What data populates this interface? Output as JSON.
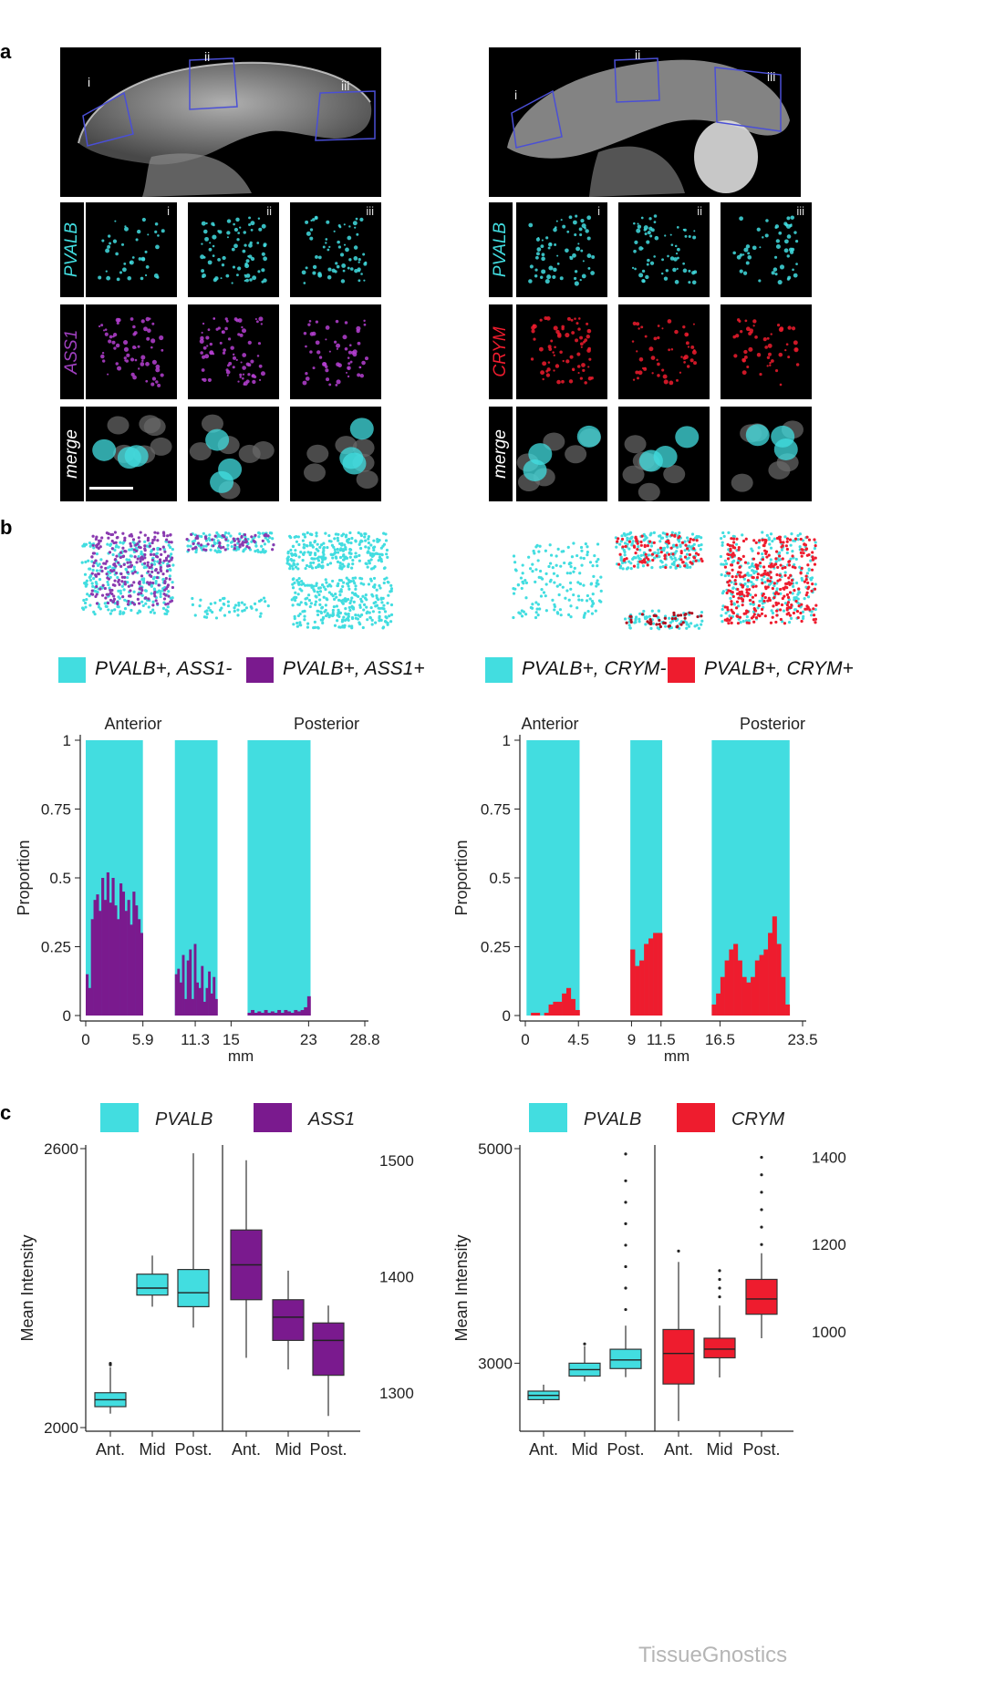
{
  "colors": {
    "cyan": "#42dde0",
    "purple": "#7a1a8e",
    "red": "#ee1c2e",
    "black": "#000000"
  },
  "panels": {
    "a": "a",
    "b": "b",
    "c": "c"
  },
  "panel_a": {
    "left": {
      "regions": [
        "i",
        "ii",
        "iii"
      ],
      "rows": [
        "PVALB",
        "ASS1",
        "merge"
      ],
      "tile_labels": [
        "i",
        "ii",
        "iii"
      ]
    },
    "right": {
      "regions": [
        "i",
        "ii",
        "iii"
      ],
      "rows": [
        "PVALB",
        "CRYM",
        "merge"
      ],
      "tile_labels": [
        "i",
        "ii",
        "iii"
      ]
    }
  },
  "panel_b": {
    "left_legend": [
      "PVALB+, ASS1-",
      "PVALB+, ASS1+"
    ],
    "right_legend": [
      "PVALB+, CRYM-",
      "PVALB+, CRYM+"
    ]
  },
  "chart_data": [
    {
      "type": "area",
      "id": "b-left",
      "title_left": "Anterior",
      "title_right": "Posterior",
      "xlabel": "mm",
      "ylabel": "Proportion",
      "ylim": [
        0,
        1
      ],
      "yticks": [
        0,
        0.25,
        0.5,
        0.75,
        1
      ],
      "ytick_labels": [
        "0",
        "0.25",
        "0.5",
        "0.75",
        "1"
      ],
      "xlim": [
        0,
        28.8
      ],
      "xticks": [
        0,
        5.9,
        11.3,
        15,
        23,
        28.8
      ],
      "xtick_labels": [
        "0",
        "5.9",
        "11.3",
        "15",
        "23",
        "28.8"
      ],
      "series": [
        {
          "name": "PVALB+, ASS1-",
          "color": "#42dde0",
          "values_note": "remainder to 1"
        },
        {
          "name": "PVALB+, ASS1+",
          "color": "#7a1a8e"
        }
      ],
      "segments": [
        {
          "x_start": 0,
          "x_end": 5.9,
          "ass1_pos": [
            0.15,
            0.1,
            0.35,
            0.42,
            0.44,
            0.38,
            0.5,
            0.42,
            0.52,
            0.41,
            0.5,
            0.4,
            0.35,
            0.48,
            0.45,
            0.38,
            0.42,
            0.33,
            0.45,
            0.4,
            0.35,
            0.3
          ]
        },
        {
          "x_start": 9.2,
          "x_end": 13.6,
          "ass1_pos": [
            0.15,
            0.17,
            0.12,
            0.22,
            0.06,
            0.2,
            0.24,
            0.06,
            0.26,
            0.12,
            0.1,
            0.18,
            0.05,
            0.1,
            0.16,
            0.08,
            0.14,
            0.06
          ]
        },
        {
          "x_start": 16.7,
          "x_end": 23.2,
          "ass1_pos": [
            0.01,
            0.02,
            0.01,
            0.015,
            0.01,
            0.02,
            0.01,
            0.015,
            0.01,
            0.02,
            0.01,
            0.02,
            0.015,
            0.01,
            0.02,
            0.015,
            0.02,
            0.03,
            0.07
          ]
        }
      ]
    },
    {
      "type": "area",
      "id": "b-right",
      "title_left": "Anterior",
      "title_right": "Posterior",
      "xlabel": "mm",
      "ylabel": "Proportion",
      "ylim": [
        0,
        1
      ],
      "yticks": [
        0,
        0.25,
        0.5,
        0.75,
        1
      ],
      "ytick_labels": [
        "0",
        "0.25",
        "0.5",
        "0.75",
        "1"
      ],
      "xlim": [
        0,
        23.5
      ],
      "xticks": [
        0,
        4.5,
        9,
        11.5,
        16.5,
        23.5
      ],
      "xtick_labels": [
        "0",
        "4.5",
        "9",
        "11.5",
        "16.5",
        "23.5"
      ],
      "series": [
        {
          "name": "PVALB+, CRYM-",
          "color": "#42dde0",
          "values_note": "remainder to 1"
        },
        {
          "name": "PVALB+, CRYM+",
          "color": "#ee1c2e"
        }
      ],
      "segments": [
        {
          "x_start": 0.1,
          "x_end": 4.6,
          "crym_pos": [
            0,
            0.01,
            0.01,
            0.0,
            0.01,
            0.04,
            0.05,
            0.05,
            0.08,
            0.1,
            0.06,
            0.02
          ]
        },
        {
          "x_start": 8.9,
          "x_end": 11.6,
          "crym_pos": [
            0.24,
            0.18,
            0.2,
            0.26,
            0.28,
            0.3,
            0.3
          ]
        },
        {
          "x_start": 15.8,
          "x_end": 22.4,
          "crym_pos": [
            0.04,
            0.08,
            0.14,
            0.2,
            0.24,
            0.26,
            0.2,
            0.14,
            0.12,
            0.14,
            0.2,
            0.22,
            0.24,
            0.3,
            0.36,
            0.26,
            0.14,
            0.04
          ]
        }
      ]
    },
    {
      "type": "box",
      "id": "c-left",
      "legend": [
        "PVALB",
        "ASS1"
      ],
      "ylabel": "Mean Intensity",
      "left_axis": {
        "ylim": [
          2000,
          2600
        ],
        "ticks": [
          2000,
          2600
        ],
        "tick_labels": [
          "2000",
          "2600"
        ]
      },
      "right_axis": {
        "ylim": [
          1270,
          1510
        ],
        "ticks": [
          1300,
          1400,
          1500
        ],
        "tick_labels": [
          "1300",
          "1400",
          "1500"
        ]
      },
      "categories": [
        "Ant.",
        "Mid",
        "Post."
      ],
      "series": [
        {
          "name": "PVALB",
          "color": "#42dde0",
          "axis": "left",
          "boxes": [
            {
              "min": 2030,
              "q1": 2045,
              "median": 2060,
              "q3": 2075,
              "max": 2130,
              "outliers": [
                2135,
                2138
              ]
            },
            {
              "min": 2260,
              "q1": 2285,
              "median": 2300,
              "q3": 2330,
              "max": 2370,
              "outliers": []
            },
            {
              "min": 2215,
              "q1": 2260,
              "median": 2290,
              "q3": 2340,
              "max": 2590,
              "outliers": []
            }
          ]
        },
        {
          "name": "ASS1",
          "color": "#7a1a8e",
          "axis": "right",
          "boxes": [
            {
              "min": 1330,
              "q1": 1380,
              "median": 1410,
              "q3": 1440,
              "max": 1500,
              "outliers": []
            },
            {
              "min": 1320,
              "q1": 1345,
              "median": 1365,
              "q3": 1380,
              "max": 1405,
              "outliers": []
            },
            {
              "min": 1280,
              "q1": 1315,
              "median": 1345,
              "q3": 1360,
              "max": 1375,
              "outliers": []
            }
          ]
        }
      ]
    },
    {
      "type": "box",
      "id": "c-right",
      "legend": [
        "PVALB",
        "CRYM"
      ],
      "ylabel": "Mean Intensity",
      "left_axis": {
        "ylim": [
          2400,
          5000
        ],
        "ticks": [
          3000,
          5000
        ],
        "tick_labels": [
          "3000",
          "5000"
        ]
      },
      "right_axis": {
        "ylim": [
          780,
          1420
        ],
        "ticks": [
          1000,
          1200,
          1400
        ],
        "tick_labels": [
          "1000",
          "1200",
          "1400"
        ]
      },
      "categories": [
        "Ant.",
        "Mid",
        "Post."
      ],
      "series": [
        {
          "name": "PVALB",
          "color": "#42dde0",
          "axis": "left",
          "boxes": [
            {
              "min": 2620,
              "q1": 2660,
              "median": 2700,
              "q3": 2740,
              "max": 2800,
              "outliers": []
            },
            {
              "min": 2830,
              "q1": 2880,
              "median": 2940,
              "q3": 3000,
              "max": 3160,
              "outliers": [
                3180
              ]
            },
            {
              "min": 2870,
              "q1": 2950,
              "median": 3030,
              "q3": 3130,
              "max": 3350,
              "outliers": [
                3500,
                3700,
                3900,
                4100,
                4300,
                4500,
                4700,
                4950
              ]
            }
          ]
        },
        {
          "name": "CRYM",
          "color": "#ee1c2e",
          "axis": "right",
          "boxes": [
            {
              "min": 795,
              "q1": 880,
              "median": 950,
              "q3": 1005,
              "max": 1160,
              "outliers": [
                1185
              ]
            },
            {
              "min": 895,
              "q1": 940,
              "median": 960,
              "q3": 985,
              "max": 1060,
              "outliers": [
                1080,
                1100,
                1120,
                1140
              ]
            },
            {
              "min": 985,
              "q1": 1040,
              "median": 1075,
              "q3": 1120,
              "max": 1180,
              "outliers": [
                1200,
                1240,
                1280,
                1320,
                1360,
                1400
              ]
            }
          ]
        }
      ]
    }
  ],
  "watermark": "TissueGnostics"
}
